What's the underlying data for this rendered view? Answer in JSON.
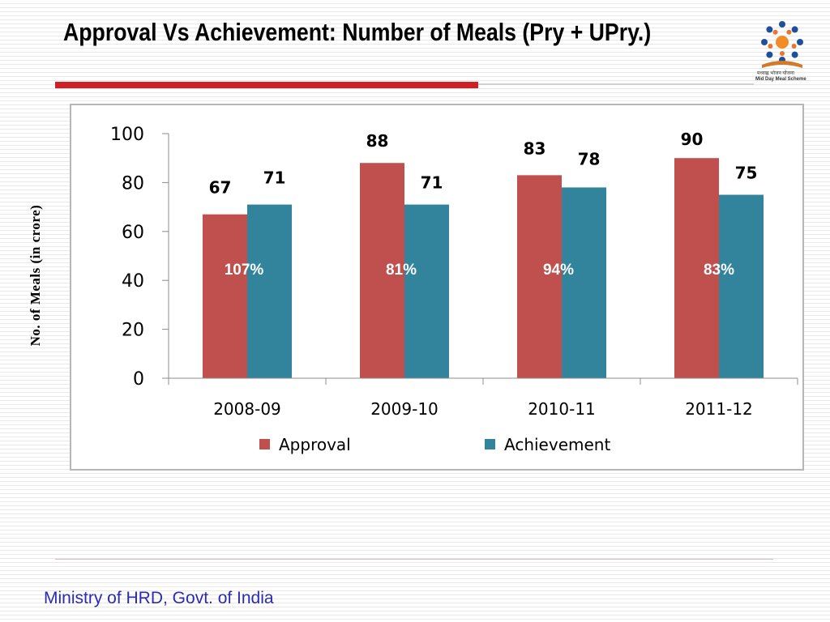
{
  "slide": {
    "title": "Approval Vs Achievement:  Number of Meals (Pry + UPry.)",
    "footer": "Ministry of HRD, Govt. of India",
    "logo": {
      "icon": "mid-day-meal-scheme-logo",
      "text_hindi": "मध्याह्न भोजन योजना",
      "text_english": "Mid Day Meal Scheme"
    },
    "colors": {
      "accent_rule": "#d21f26"
    }
  },
  "chart_data": {
    "type": "bar",
    "title": "",
    "xlabel": "",
    "ylabel": "No. of Meals (in crore)",
    "ylim": [
      0,
      100
    ],
    "yticks": [
      0,
      20,
      40,
      60,
      80,
      100
    ],
    "grid": false,
    "legend_position": "bottom",
    "categories": [
      "2008-09",
      "2009-10",
      "2010-11",
      "2011-12"
    ],
    "series": [
      {
        "name": "Approval",
        "color": "#c0504d",
        "values": [
          67,
          88,
          83,
          90
        ]
      },
      {
        "name": "Achievement",
        "color": "#31849b",
        "values": [
          71,
          71,
          78,
          75
        ]
      }
    ],
    "annotations": [
      "107%",
      "81%",
      "94%",
      "83%"
    ]
  }
}
